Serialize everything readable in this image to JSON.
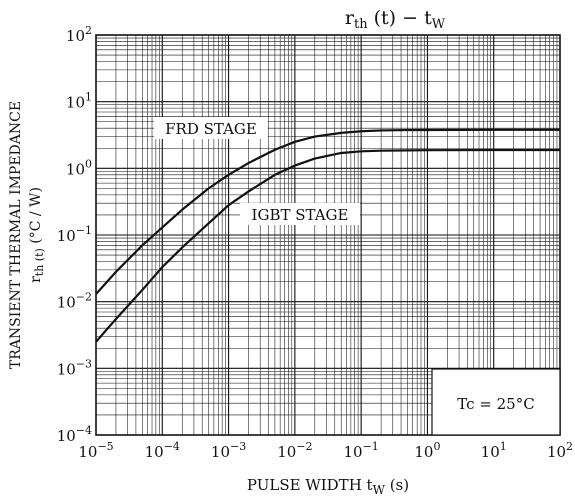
{
  "chart_data": {
    "type": "line",
    "title": {
      "main": "r",
      "main_sub": "th",
      "main_tail": " (t)  −  t",
      "main_tail_sub": "W"
    },
    "xlabel": {
      "main": "PULSE WIDTH   t",
      "sub": "W",
      "unit": "   (s)"
    },
    "ylabel": {
      "line1": "TRANSIENT THERMAL IMPEDANCE",
      "line2_main": "r",
      "line2_sub": "th (t)",
      "line2_unit": "   (°C / W)"
    },
    "x_scale": "log",
    "y_scale": "log",
    "xlim": [
      1e-05,
      100
    ],
    "ylim": [
      0.0001,
      100
    ],
    "x_ticks": [
      {
        "base": "10",
        "exp": "−5"
      },
      {
        "base": "10",
        "exp": "−4"
      },
      {
        "base": "10",
        "exp": "−3"
      },
      {
        "base": "10",
        "exp": "−2"
      },
      {
        "base": "10",
        "exp": "−1"
      },
      {
        "base": "10",
        "exp": "0"
      },
      {
        "base": "10",
        "exp": "1"
      },
      {
        "base": "10",
        "exp": "2"
      }
    ],
    "y_ticks": [
      {
        "base": "10",
        "exp": "−4"
      },
      {
        "base": "10",
        "exp": "−3"
      },
      {
        "base": "10",
        "exp": "−2"
      },
      {
        "base": "10",
        "exp": "−1"
      },
      {
        "base": "10",
        "exp": "0"
      },
      {
        "base": "10",
        "exp": "1"
      },
      {
        "base": "10",
        "exp": "2"
      }
    ],
    "grid": true,
    "series": [
      {
        "name": "FRD STAGE",
        "x": [
          1e-05,
          2e-05,
          5e-05,
          0.0001,
          0.0002,
          0.0005,
          0.001,
          0.002,
          0.005,
          0.01,
          0.02,
          0.05,
          0.1,
          0.2,
          0.5,
          1,
          10,
          100
        ],
        "y": [
          0.013,
          0.028,
          0.07,
          0.13,
          0.24,
          0.5,
          0.8,
          1.2,
          1.9,
          2.5,
          3.0,
          3.4,
          3.6,
          3.7,
          3.75,
          3.76,
          3.78,
          3.78
        ]
      },
      {
        "name": "IGBT STAGE",
        "x": [
          1e-05,
          2e-05,
          5e-05,
          0.0001,
          0.0002,
          0.0005,
          0.001,
          0.002,
          0.005,
          0.01,
          0.02,
          0.05,
          0.1,
          0.2,
          0.5,
          1,
          10,
          100
        ],
        "y": [
          0.0025,
          0.0055,
          0.015,
          0.033,
          0.065,
          0.15,
          0.28,
          0.45,
          0.8,
          1.1,
          1.4,
          1.7,
          1.8,
          1.84,
          1.86,
          1.87,
          1.88,
          1.88
        ]
      }
    ],
    "annotation": "Tc = 25°C",
    "legend": "inline labels"
  }
}
